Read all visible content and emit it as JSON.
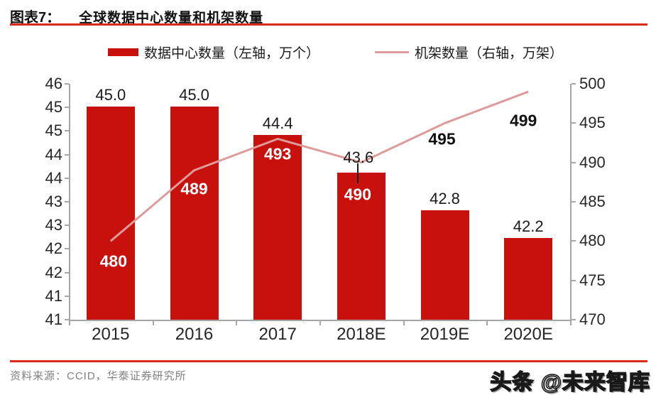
{
  "header": {
    "label": "图表7：",
    "title": "全球数据中心数量和机架数量"
  },
  "legend": {
    "bar": {
      "label": "数据中心数量（左轴，万个）",
      "color": "#C8100D",
      "swatch": "bar-swatch"
    },
    "line": {
      "label": "机架数量（右轴，万架）",
      "color": "#DD9C9A",
      "swatch": "line-swatch"
    }
  },
  "chart_data": {
    "type": "bar",
    "subtype": "dual-axis bar + line combo",
    "categories": [
      "2015",
      "2016",
      "2017",
      "2018E",
      "2019E",
      "2020E"
    ],
    "series": [
      {
        "name": "数据中心数量（左轴，万个）",
        "type": "bar",
        "axis": "left",
        "color": "#C8100D",
        "values": [
          45.0,
          45.0,
          44.4,
          43.6,
          42.8,
          42.2
        ]
      },
      {
        "name": "机架数量（右轴，万架）",
        "type": "line",
        "axis": "right",
        "color": "#DD9C9A",
        "values": [
          480,
          489,
          493,
          490,
          495,
          499
        ]
      }
    ],
    "left_axis_tick_labels": [
      "46",
      "45",
      "45",
      "44",
      "44",
      "43",
      "43",
      "42",
      "42",
      "41",
      "41"
    ],
    "right_axis_tick_labels": [
      "500",
      "495",
      "490",
      "485",
      "480",
      "475",
      "470"
    ],
    "right_axis_range": [
      470,
      500
    ],
    "grid": false,
    "legend_position": "top"
  },
  "footer": {
    "source": "资料来源：CCID，华泰证券研究所",
    "watermark": "头条 @未来智库"
  },
  "colors": {
    "bar_red": "#C8100D",
    "line_pink": "#DD9C9A",
    "rule_red": "#D52B1E",
    "axis_gray": "#A6A6A6",
    "source_gray": "#808080"
  }
}
